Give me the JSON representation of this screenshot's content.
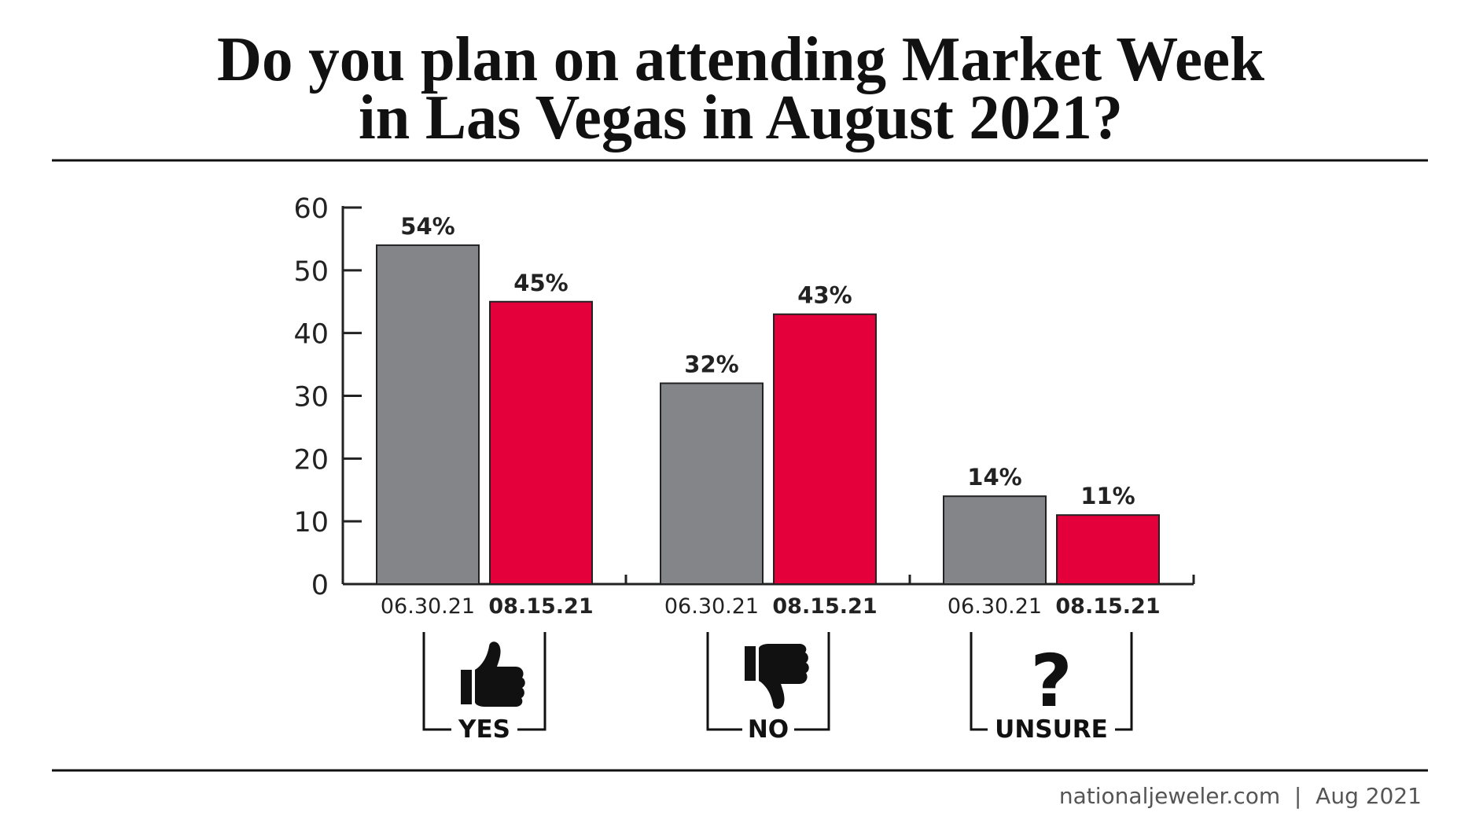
{
  "chart_data": {
    "type": "bar",
    "title": [
      "Do you plan on attending Market Week",
      "in Las Vegas in August 2021?"
    ],
    "categories": [
      "YES",
      "NO",
      "UNSURE"
    ],
    "category_icons": [
      "thumbs-up-icon",
      "thumbs-down-icon",
      "question-mark-icon"
    ],
    "series": [
      {
        "name": "06.30.21",
        "values": [
          54,
          32,
          14
        ],
        "labels": [
          "54%",
          "32%",
          "14%"
        ],
        "color": "#848589"
      },
      {
        "name": "08.15.21",
        "values": [
          45,
          43,
          11
        ],
        "labels": [
          "45%",
          "43%",
          "11%"
        ],
        "color": "#e4003a"
      }
    ],
    "ylim": [
      0,
      60
    ],
    "yticks": [
      "0",
      "10",
      "20",
      "30",
      "40",
      "50",
      "60"
    ],
    "grid": false
  },
  "footer": "nationaljeweler.com  |  Aug 2021"
}
